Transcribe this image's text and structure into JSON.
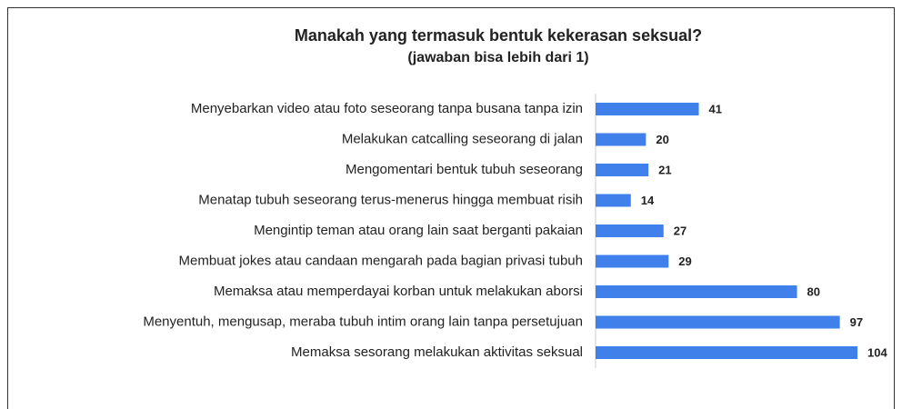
{
  "chart_data": {
    "type": "bar",
    "orientation": "horizontal",
    "title": "Manakah yang termasuk bentuk kekerasan seksual?",
    "subtitle": "(jawaban bisa lebih dari 1)",
    "categories": [
      "Menyebarkan video atau foto seseorang tanpa busana tanpa izin",
      "Melakukan catcalling seseorang di jalan",
      "Mengomentari bentuk tubuh seseorang",
      "Menatap tubuh seseorang terus-menerus hingga membuat risih",
      "Mengintip teman atau orang lain saat berganti pakaian",
      "Membuat jokes atau candaan mengarah pada bagian privasi tubuh",
      "Memaksa atau memperdayai korban untuk melakukan aborsi",
      "Menyentuh, mengusap, meraba tubuh intim orang lain tanpa persetujuan",
      "Memaksa sesorang melakukan aktivitas seksual"
    ],
    "values": [
      41,
      20,
      21,
      14,
      27,
      29,
      80,
      97,
      104
    ],
    "color": "#3f80ea"
  }
}
